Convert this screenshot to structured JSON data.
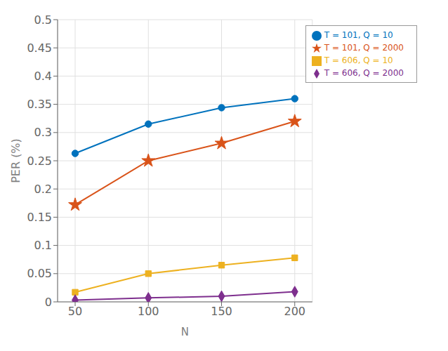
{
  "chart_data": {
    "type": "line",
    "x": [
      50,
      100,
      150,
      200
    ],
    "series": [
      {
        "name": "T = 101, Q = 10",
        "color": "#0072BD",
        "marker": "circle",
        "values": [
          0.263,
          0.315,
          0.344,
          0.36
        ]
      },
      {
        "name": "T = 101, Q = 2000",
        "color": "#D95319",
        "marker": "star",
        "values": [
          0.172,
          0.25,
          0.281,
          0.32
        ]
      },
      {
        "name": "T = 606, Q = 10",
        "color": "#EDB120",
        "marker": "square",
        "values": [
          0.017,
          0.05,
          0.065,
          0.078
        ]
      },
      {
        "name": "T = 606, Q = 2000",
        "color": "#7E2F8E",
        "marker": "diamond",
        "values": [
          0.003,
          0.007,
          0.01,
          0.018
        ]
      }
    ],
    "xlabel": "N",
    "ylabel": "PER (%)",
    "xlim": [
      38,
      212
    ],
    "ylim": [
      0,
      0.5
    ],
    "xticks": [
      50,
      100,
      150,
      200
    ],
    "yticks": [
      0,
      0.05,
      0.1,
      0.15,
      0.2,
      0.25,
      0.3,
      0.35,
      0.4,
      0.45,
      0.5
    ],
    "grid": true,
    "legend": "upper right"
  }
}
